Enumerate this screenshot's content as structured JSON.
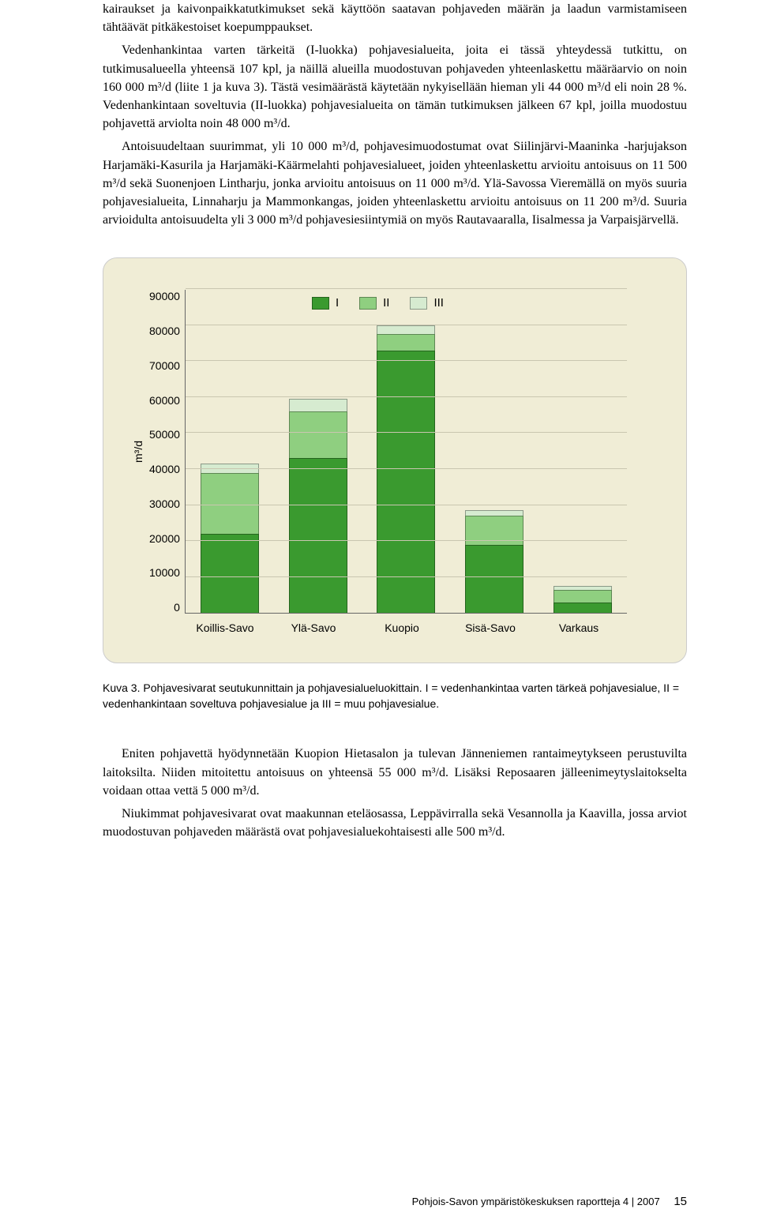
{
  "para1": "kairaukset ja kaivonpaikkatutkimukset sekä käyttöön saatavan pohjaveden määrän ja laadun varmistamiseen tähtäävät pitkäkestoiset koepumppaukset.",
  "para2": "Vedenhankintaa varten tärkeitä (I-luokka) pohjavesialueita, joita ei tässä yhteydessä tutkittu, on tutkimusalueella yhteensä 107 kpl, ja näillä alueilla muodostuvan pohjaveden yhteenlaskettu määräarvio on noin 160 000 m³/d (liite 1 ja kuva 3). Tästä vesimäärästä käytetään nykyisellään hieman yli 44 000 m³/d eli noin 28 %. Vedenhankintaan soveltuvia (II-luokka) pohjavesialueita on tämän tutkimuksen jälkeen 67 kpl, joilla muodostuu pohjavettä arviolta noin 48 000 m³/d.",
  "para3": "Antoisuudeltaan suurimmat, yli 10 000 m³/d, pohjavesimuodostumat ovat Siilinjärvi-Maaninka -harjujakson Harjamäki-Kasurila ja Harjamäki-Käärmelahti pohjavesialueet, joiden yhteenlaskettu arvioitu antoisuus on 11 500 m³/d sekä Suonenjoen Lintharju, jonka arvioitu antoisuus on 11 000 m³/d. Ylä-Savossa Vieremällä on myös suuria pohjavesialueita, Linnaharju ja Mammonkangas, joiden yhteenlaskettu arvioitu antoisuus on 11 200 m³/d. Suuria arvioidulta antoisuudelta yli 3 000 m³/d pohjavesiesiintymiä on myös Rautavaaralla, Iisalmessa ja Varpaisjärvellä.",
  "chart": {
    "ylabel": "m³/d",
    "ymax": 90000,
    "ytick_step": 10000,
    "yticks": [
      "90000",
      "80000",
      "70000",
      "60000",
      "50000",
      "40000",
      "30000",
      "20000",
      "10000",
      "0"
    ],
    "categories": [
      "Koillis-Savo",
      "Ylä-Savo",
      "Kuopio",
      "Sisä-Savo",
      "Varkaus"
    ],
    "series_labels": [
      "I",
      "II",
      "III"
    ],
    "colors": {
      "I": "#3a9a2f",
      "II": "#8fcf80",
      "III": "#d6ebd0",
      "bg": "#f0edd6",
      "grid": "#c9c6b0"
    },
    "data": {
      "Koillis-Savo": {
        "I": 22000,
        "II": 17000,
        "III": 2500
      },
      "Ylä-Savo": {
        "I": 43000,
        "II": 13000,
        "III": 3500
      },
      "Kuopio": {
        "I": 73000,
        "II": 4500,
        "III": 2500
      },
      "Sisä-Savo": {
        "I": 19000,
        "II": 8000,
        "III": 1500
      },
      "Varkaus": {
        "I": 3000,
        "II": 3500,
        "III": 1000
      }
    }
  },
  "caption": "Kuva 3. Pohjavesivarat seutukunnittain ja pohjavesialueluokittain. I = vedenhankintaa varten tärkeä pohjavesialue, II = vedenhankintaan soveltuva pohjavesialue ja III = muu pohjavesialue.",
  "para4": "Eniten pohjavettä hyödynnetään Kuopion Hietasalon ja tulevan Jänneniemen rantaimeytykseen perustuvilta laitoksilta. Niiden mitoitettu antoisuus on yhteensä 55 000 m³/d. Lisäksi Reposaaren jälleenimeytyslaitokselta voidaan ottaa vettä 5 000  m³/d.",
  "para5": "Niukimmat pohjavesivarat ovat maakunnan eteläosassa, Leppävirralla sekä Vesannolla ja Kaavilla, jossa arviot muodostuvan pohjaveden määrästä ovat pohjavesialuekohtaisesti alle 500 m³/d.",
  "footer_pub": "Pohjois-Savon ympäristökeskuksen raportteja 4 | 2007",
  "footer_page": "15"
}
